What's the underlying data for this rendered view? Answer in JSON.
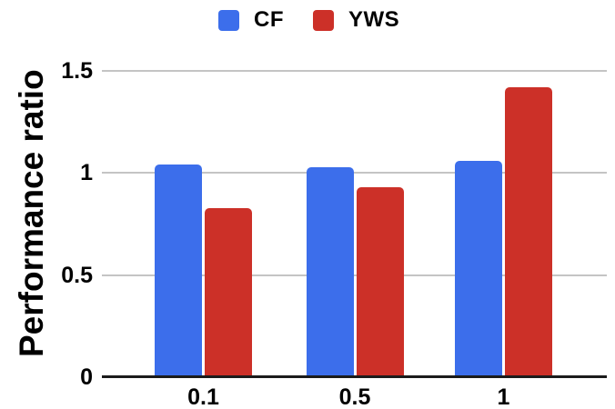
{
  "legend": {
    "items": [
      {
        "label": "CF",
        "swatch_color": "#3C6EEB"
      },
      {
        "label": "YWS",
        "swatch_color": "#CC3028"
      }
    ]
  },
  "chart_data": {
    "type": "bar",
    "title": "",
    "categories": [
      "0.1",
      "0.5",
      "1"
    ],
    "series": [
      {
        "name": "CF",
        "color": "#3C6EEB",
        "values": [
          1.04,
          1.03,
          1.06
        ]
      },
      {
        "name": "YWS",
        "color": "#CC3028",
        "values": [
          0.83,
          0.93,
          1.42
        ]
      }
    ],
    "xlabel": "",
    "ylabel": "Performance ratio",
    "ylim": [
      0,
      1.5
    ],
    "y_ticks": [
      "0",
      "0.5",
      "1",
      "1.5"
    ],
    "grid": true,
    "legend_position": "top-center",
    "colors": {
      "gridline": "#C4C4C4",
      "baseline": "#1B1B1B",
      "text": "#000000"
    }
  }
}
